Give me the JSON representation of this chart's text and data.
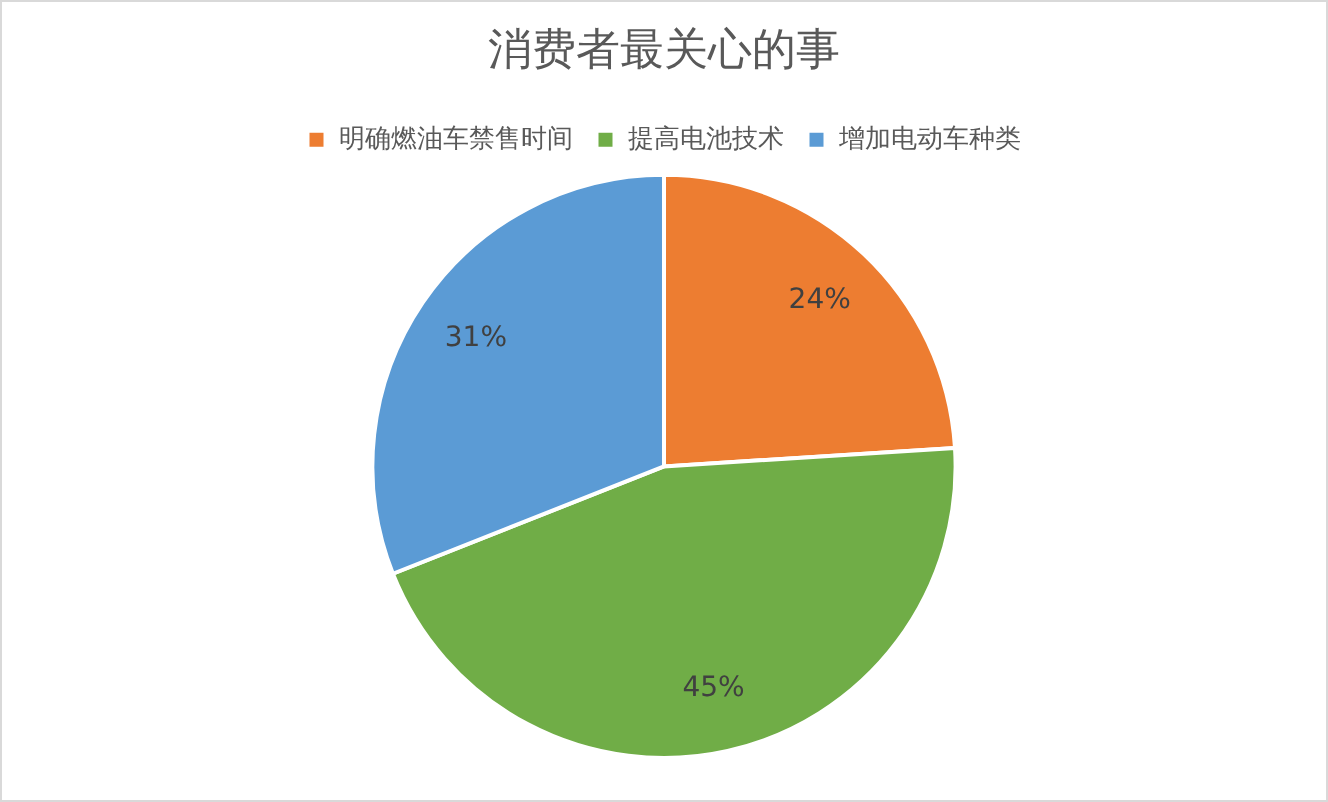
{
  "chart_data": {
    "type": "pie",
    "title": "消费者最关心的事",
    "categories": [
      "明确燃油车禁售时间",
      "提高电池技术",
      "增加电动车种类"
    ],
    "values": [
      24,
      45,
      31
    ],
    "colors": [
      "#ed7d31",
      "#70ad47",
      "#5b9bd5"
    ],
    "value_labels": [
      "24%",
      "45%",
      "31%"
    ],
    "legend": "top"
  }
}
